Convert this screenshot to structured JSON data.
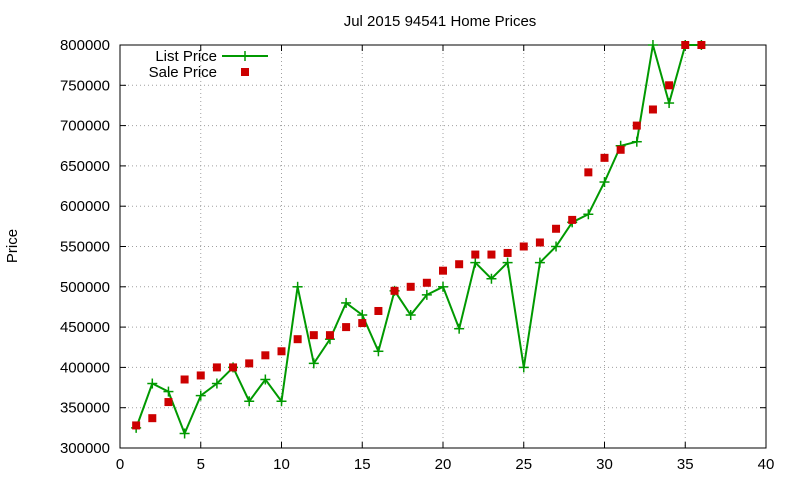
{
  "chart_data": {
    "type": "line",
    "title": "Jul 2015 94541 Home Prices",
    "xlabel": "",
    "ylabel": "Price",
    "xlim": [
      0,
      40
    ],
    "ylim": [
      300000,
      800000
    ],
    "xticks": [
      0,
      5,
      10,
      15,
      20,
      25,
      30,
      35,
      40
    ],
    "yticks": [
      300000,
      350000,
      400000,
      450000,
      500000,
      550000,
      600000,
      650000,
      700000,
      750000,
      800000
    ],
    "grid": true,
    "legend_position": "top-left",
    "series": [
      {
        "name": "List Price",
        "style": "line-with-plus-markers",
        "color": "#009900",
        "x": [
          1,
          2,
          3,
          4,
          5,
          6,
          7,
          8,
          9,
          10,
          11,
          12,
          13,
          14,
          15,
          16,
          17,
          18,
          19,
          20,
          21,
          22,
          23,
          24,
          25,
          26,
          27,
          28,
          29,
          30,
          31,
          32,
          33,
          34,
          35,
          36
        ],
        "y": [
          325000,
          380000,
          370000,
          318000,
          365000,
          380000,
          400000,
          358000,
          385000,
          358000,
          500000,
          405000,
          435000,
          480000,
          465000,
          420000,
          495000,
          465000,
          490000,
          500000,
          448000,
          530000,
          510000,
          530000,
          400000,
          530000,
          550000,
          580000,
          590000,
          630000,
          675000,
          680000,
          800000,
          728000,
          800000,
          800000
        ]
      },
      {
        "name": "Sale Price",
        "style": "square-markers",
        "color": "#cc0000",
        "x": [
          1,
          2,
          3,
          4,
          5,
          6,
          7,
          8,
          9,
          10,
          11,
          12,
          13,
          14,
          15,
          16,
          17,
          18,
          19,
          20,
          21,
          22,
          23,
          24,
          25,
          26,
          27,
          28,
          29,
          30,
          31,
          32,
          33,
          34,
          35,
          36
        ],
        "y": [
          328000,
          337000,
          357000,
          385000,
          390000,
          400000,
          400000,
          405000,
          415000,
          420000,
          435000,
          440000,
          440000,
          450000,
          455000,
          470000,
          495000,
          500000,
          505000,
          520000,
          528000,
          540000,
          540000,
          542000,
          550000,
          555000,
          572000,
          583000,
          642000,
          660000,
          670000,
          700000,
          720000,
          750000,
          800000,
          800000
        ]
      }
    ]
  }
}
